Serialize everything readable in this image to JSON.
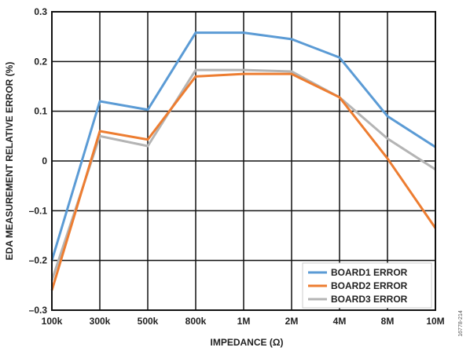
{
  "figure_id": "16778-214",
  "chart_data": {
    "type": "line",
    "title": "",
    "xlabel": "IMPEDANCE (Ω)",
    "ylabel": "EDA MEASUREMENT RELATIVE ERROR (%)",
    "categories": [
      "100k",
      "300k",
      "500k",
      "800k",
      "1M",
      "2M",
      "4M",
      "8M",
      "10M"
    ],
    "ylim": [
      -0.3,
      0.3
    ],
    "yticks": [
      0.3,
      0.2,
      0.1,
      0,
      -0.1,
      -0.2,
      -0.3
    ],
    "ytick_labels": [
      "0.3",
      "0.2",
      "0.1",
      "0",
      "–0.1",
      "–0.2",
      "–0.3"
    ],
    "grid": true,
    "legend_position": "bottom-right",
    "series": [
      {
        "name": "BOARD1 ERROR",
        "color": "#5b9bd5",
        "values": [
          -0.2,
          0.12,
          0.103,
          0.258,
          0.258,
          0.245,
          0.208,
          0.09,
          0.028
        ]
      },
      {
        "name": "BOARD2 ERROR",
        "color": "#ed7d31",
        "values": [
          -0.26,
          0.06,
          0.043,
          0.17,
          0.175,
          0.175,
          0.128,
          0.005,
          -0.135
        ]
      },
      {
        "name": "BOARD3 ERROR",
        "color": "#b4b4b4",
        "values": [
          -0.24,
          0.05,
          0.03,
          0.183,
          0.183,
          0.18,
          0.128,
          0.045,
          -0.017
        ]
      }
    ]
  }
}
